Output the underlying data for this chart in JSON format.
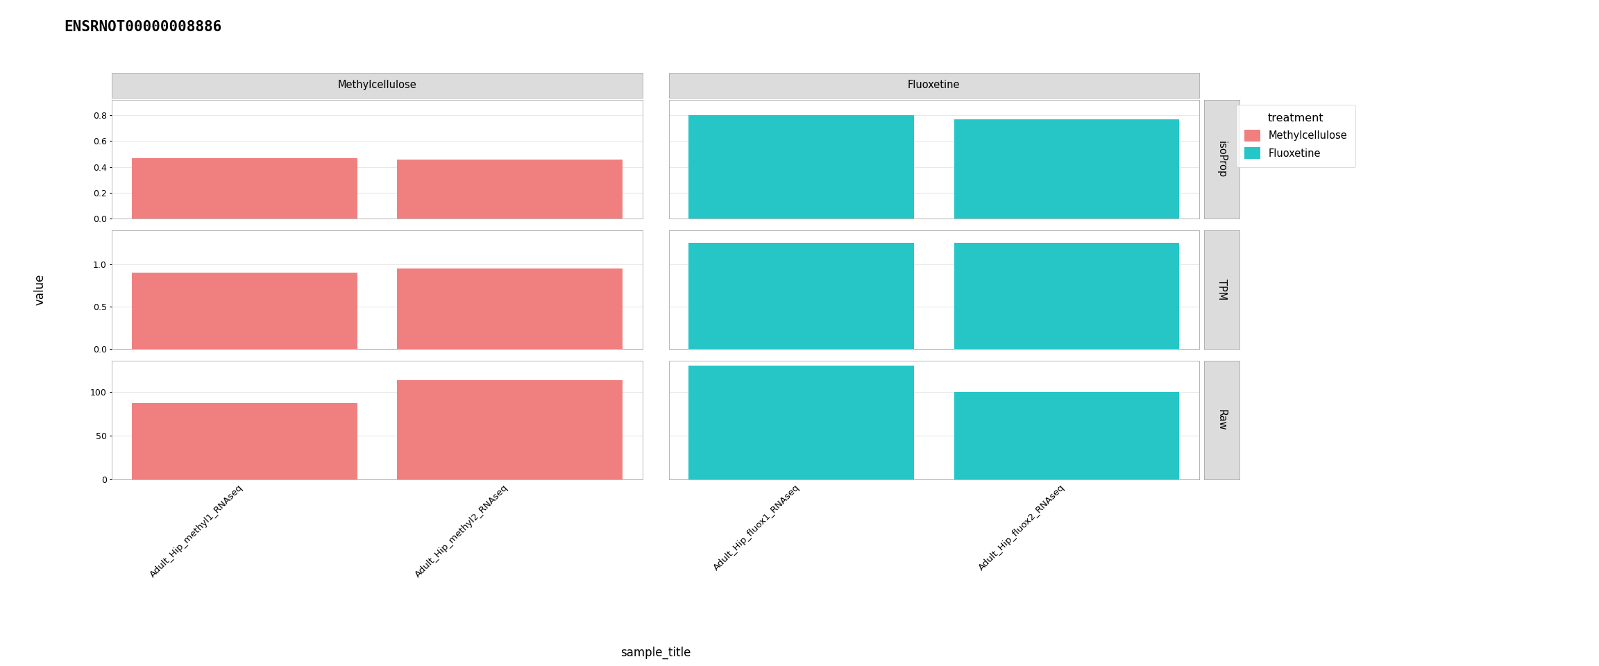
{
  "title": "ENSRNOT00000008886",
  "samples": [
    "Adult_Hip_methyl1_RNAseq",
    "Adult_Hip_methyl2_RNAseq",
    "Adult_Hip_fluox1_RNAseq",
    "Adult_Hip_fluox2_RNAseq"
  ],
  "conditions": [
    "Methylcellulose",
    "Methylcellulose",
    "Fluoxetine",
    "Fluoxetine"
  ],
  "metrics": [
    "isoProp",
    "TPM",
    "Raw"
  ],
  "colors": {
    "Methylcellulose": "#F08080",
    "Fluoxetine": "#26C6C6"
  },
  "values": {
    "isoProp": [
      0.47,
      0.455,
      0.8,
      0.77
    ],
    "TPM": [
      0.9,
      0.95,
      1.25,
      1.25
    ],
    "Raw": [
      87,
      113,
      130,
      100
    ]
  },
  "ylims": {
    "isoProp": [
      0,
      0.92
    ],
    "TPM": [
      0,
      1.4
    ],
    "Raw": [
      0,
      135
    ]
  },
  "yticks": {
    "isoProp": [
      0.0,
      0.2,
      0.4,
      0.6,
      0.8
    ],
    "TPM": [
      0.0,
      0.5,
      1.0
    ],
    "Raw": [
      0,
      50,
      100
    ]
  },
  "strip_labels": [
    "isoProp",
    "TPM",
    "Raw"
  ],
  "col_labels": [
    "Methylcellulose",
    "Fluoxetine"
  ],
  "xlabel": "sample_title",
  "ylabel": "value",
  "legend_title": "treatment",
  "legend_labels": [
    "Methylcellulose",
    "Fluoxetine"
  ],
  "bg_color": "#FFFFFF",
  "panel_bg": "#FFFFFF",
  "strip_bg": "#DCDCDC",
  "grid_color": "#E8E8E8",
  "fig_width": 23.04,
  "fig_height": 9.6,
  "dpi": 100
}
